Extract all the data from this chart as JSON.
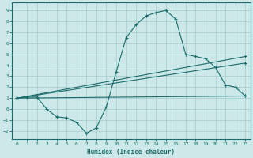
{
  "xlabel": "Humidex (Indice chaleur)",
  "bg_color": "#cce8e8",
  "grid_color": "#aacfcf",
  "line_color": "#1a6b6b",
  "xlim": [
    -0.5,
    23.5
  ],
  "ylim": [
    -2.7,
    9.7
  ],
  "xticks": [
    0,
    1,
    2,
    3,
    4,
    5,
    6,
    7,
    8,
    9,
    10,
    11,
    12,
    13,
    14,
    15,
    16,
    17,
    18,
    19,
    20,
    21,
    22,
    23
  ],
  "yticks": [
    -2,
    -1,
    0,
    1,
    2,
    3,
    4,
    5,
    6,
    7,
    8,
    9
  ],
  "line1_x": [
    0,
    1,
    2,
    3,
    4,
    5,
    6,
    7,
    8,
    9,
    10,
    11,
    12,
    13,
    14,
    15,
    16,
    17,
    18,
    19,
    20,
    21,
    22,
    23
  ],
  "line1_y": [
    1.0,
    1.1,
    1.1,
    0.0,
    -0.7,
    -0.8,
    -1.2,
    -2.2,
    -1.7,
    0.2,
    3.4,
    6.5,
    7.7,
    8.5,
    8.8,
    9.0,
    8.2,
    5.0,
    4.8,
    4.6,
    3.8,
    2.2,
    2.0,
    1.2
  ],
  "line2_x": [
    0,
    23
  ],
  "line2_y": [
    1.0,
    4.8
  ],
  "line3_x": [
    0,
    23
  ],
  "line3_y": [
    1.0,
    4.2
  ],
  "line4_x": [
    0,
    23
  ],
  "line4_y": [
    1.0,
    1.2
  ]
}
